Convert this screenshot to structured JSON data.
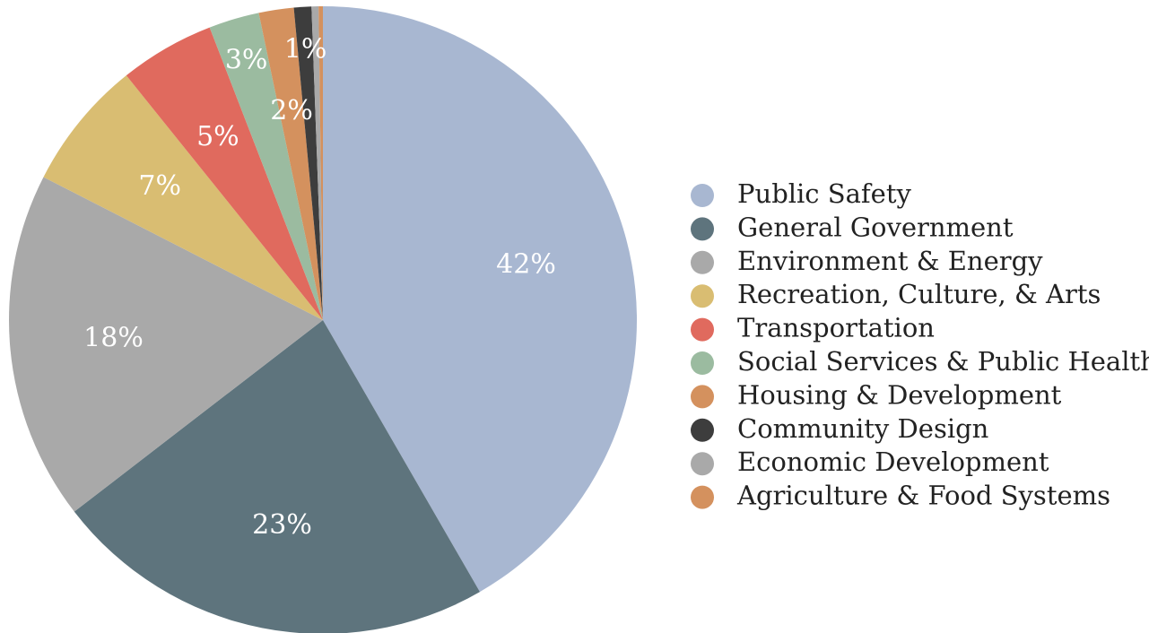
{
  "chart_data": {
    "type": "pie",
    "categories": [
      "Public Safety",
      "General Government",
      "Environment & Energy",
      "Recreation, Culture, & Arts",
      "Transportation",
      "Social Services & Public Health",
      "Housing & Development",
      "Community Design",
      "Economic Development",
      "Agriculture & Food Systems"
    ],
    "values": [
      41.7,
      22.9,
      18,
      6.7,
      4.9,
      2.6,
      1.8,
      0.9,
      0.36,
      0.22
    ],
    "value_labels": [
      "42%",
      "23%",
      "18%",
      "7%",
      "5%",
      "3%",
      "2%",
      "1%",
      null,
      null
    ],
    "colors": [
      "#a8b7d1",
      "#5e747d",
      "#a9a9a9",
      "#d9bd72",
      "#e06a5e",
      "#9bbba0",
      "#d4915e",
      "#3d3d3d",
      "#a9a9a9",
      "#d4915e"
    ],
    "legend": "right"
  }
}
